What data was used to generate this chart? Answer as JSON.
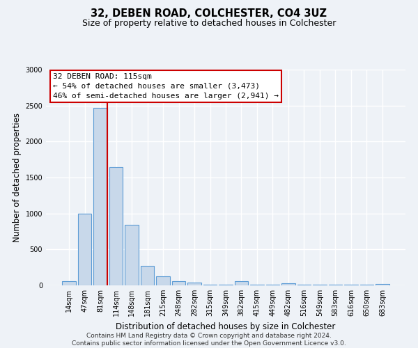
{
  "title": "32, DEBEN ROAD, COLCHESTER, CO4 3UZ",
  "subtitle": "Size of property relative to detached houses in Colchester",
  "xlabel": "Distribution of detached houses by size in Colchester",
  "ylabel": "Number of detached properties",
  "footnote1": "Contains HM Land Registry data © Crown copyright and database right 2024.",
  "footnote2": "Contains public sector information licensed under the Open Government Licence v3.0.",
  "bar_labels": [
    "14sqm",
    "47sqm",
    "81sqm",
    "114sqm",
    "148sqm",
    "181sqm",
    "215sqm",
    "248sqm",
    "282sqm",
    "315sqm",
    "349sqm",
    "382sqm",
    "415sqm",
    "449sqm",
    "482sqm",
    "516sqm",
    "549sqm",
    "583sqm",
    "616sqm",
    "650sqm",
    "683sqm"
  ],
  "bar_values": [
    60,
    1000,
    2470,
    1650,
    840,
    270,
    130,
    55,
    35,
    5,
    5,
    55,
    5,
    5,
    25,
    5,
    5,
    5,
    5,
    5,
    20
  ],
  "bar_color": "#c8d8ea",
  "bar_edge_color": "#5b9bd5",
  "annotation_text_line1": "32 DEBEN ROAD: 115sqm",
  "annotation_text_line2": "← 54% of detached houses are smaller (3,473)",
  "annotation_text_line3": "46% of semi-detached houses are larger (2,941) →",
  "annotation_box_color": "#ffffff",
  "annotation_box_edge_color": "#cc0000",
  "red_line_color": "#cc0000",
  "ylim": [
    0,
    3000
  ],
  "yticks": [
    0,
    500,
    1000,
    1500,
    2000,
    2500,
    3000
  ],
  "background_color": "#eef2f7",
  "grid_color": "#ffffff",
  "title_fontsize": 10.5,
  "subtitle_fontsize": 9,
  "axis_label_fontsize": 8.5,
  "tick_fontsize": 7,
  "annotation_fontsize": 8,
  "footnote_fontsize": 6.5
}
